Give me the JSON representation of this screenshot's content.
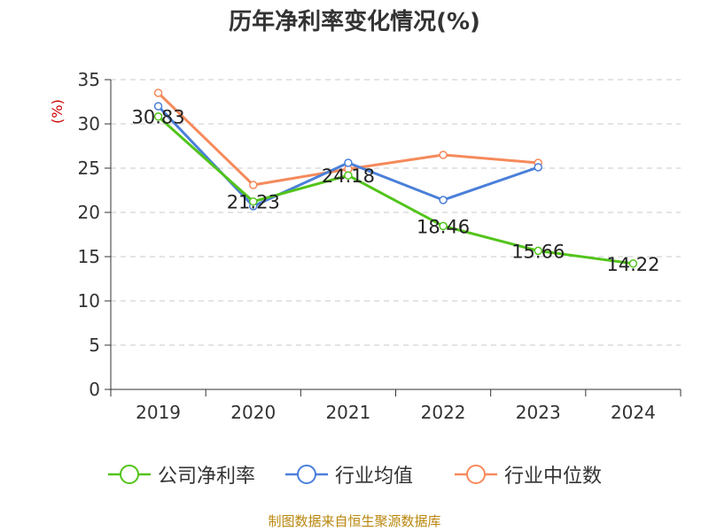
{
  "chart_data": {
    "type": "line",
    "title": "历年净利率变化情况(%)",
    "ylabel": "(%)",
    "xlabel": "",
    "categories": [
      "2019",
      "2020",
      "2021",
      "2022",
      "2023",
      "2024"
    ],
    "ylim": [
      0,
      35
    ],
    "yticks": [
      0,
      5,
      10,
      15,
      20,
      25,
      30,
      35
    ],
    "grid": true,
    "legend_position": "bottom",
    "series": [
      {
        "name": "公司净利率",
        "color": "#52c41a",
        "values": [
          30.83,
          21.23,
          24.18,
          18.46,
          15.66,
          14.22
        ],
        "labels": [
          "30.83",
          "21.23",
          "24.18",
          "18.46",
          "15.66",
          "14.22"
        ]
      },
      {
        "name": "行业均值",
        "color": "#4a7fd9",
        "values": [
          32.0,
          20.7,
          25.6,
          21.4,
          25.1,
          null
        ]
      },
      {
        "name": "行业中位数",
        "color": "#f58a5b",
        "values": [
          33.5,
          23.1,
          24.9,
          26.5,
          25.6,
          null
        ]
      }
    ]
  },
  "source_note": "制图数据来自恒生聚源数据库"
}
